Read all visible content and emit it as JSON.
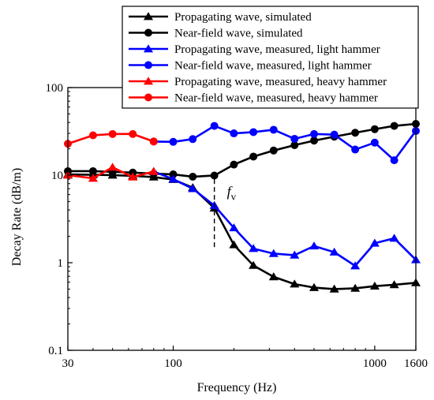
{
  "chart_data": {
    "type": "line",
    "title": "",
    "xlabel": "Frequency (Hz)",
    "ylabel": "Decay Rate (dB/m)",
    "xscale": "log",
    "yscale": "log",
    "xlim": [
      30,
      1600
    ],
    "ylim": [
      0.1,
      100
    ],
    "x_ticks": [
      30,
      100,
      1000,
      1600
    ],
    "x_tick_labels": [
      "30",
      "100",
      "1000",
      "1600"
    ],
    "y_ticks": [
      0.1,
      1,
      10,
      100
    ],
    "y_tick_labels": [
      "0.1",
      "1",
      "10",
      "100"
    ],
    "grid": false,
    "legend_position": "top-right",
    "annotation": {
      "text": "f",
      "subscript": "v",
      "x": 160,
      "y_range": [
        1.5,
        9
      ]
    },
    "series": [
      {
        "name": "Propagating wave, simulated",
        "color": "#000000",
        "marker": "triangle",
        "x": [
          30,
          40,
          50,
          63,
          80,
          100,
          125,
          160,
          200,
          250,
          315,
          400,
          500,
          630,
          800,
          1000,
          1250,
          1600
        ],
        "y": [
          10.2,
          10.1,
          10.0,
          9.8,
          9.5,
          8.9,
          7.2,
          4.2,
          1.6,
          0.93,
          0.69,
          0.57,
          0.52,
          0.5,
          0.51,
          0.54,
          0.56,
          0.59
        ]
      },
      {
        "name": "Near-field wave, simulated",
        "color": "#000000",
        "marker": "circle",
        "x": [
          30,
          40,
          50,
          63,
          80,
          100,
          125,
          160,
          200,
          250,
          315,
          400,
          500,
          630,
          800,
          1000,
          1250,
          1600
        ],
        "y": [
          11.1,
          11.1,
          10.9,
          10.7,
          10.4,
          10.2,
          9.6,
          9.9,
          13.2,
          16.3,
          19.1,
          22.0,
          24.8,
          27.5,
          30.5,
          33.5,
          36.5,
          38.5
        ]
      },
      {
        "name": "Propagating wave, measured, light hammer",
        "color": "#0000ff",
        "marker": "triangle",
        "x": [
          80,
          100,
          125,
          160,
          200,
          250,
          315,
          400,
          500,
          630,
          800,
          1000,
          1250,
          1600
        ],
        "y": [
          11.0,
          9.0,
          7.0,
          4.5,
          2.5,
          1.45,
          1.27,
          1.22,
          1.55,
          1.32,
          0.92,
          1.67,
          1.9,
          1.08
        ]
      },
      {
        "name": "Near-field wave, measured, light hammer",
        "color": "#0000ff",
        "marker": "circle",
        "x": [
          80,
          100,
          125,
          160,
          200,
          250,
          315,
          400,
          500,
          630,
          800,
          1000,
          1250,
          1600
        ],
        "y": [
          24.2,
          24.0,
          25.8,
          36.5,
          30.0,
          31.0,
          33.0,
          26.0,
          29.5,
          29.0,
          19.6,
          23.5,
          14.8,
          32.0
        ]
      },
      {
        "name": "Propagating wave, measured, heavy hammer",
        "color": "#ff0000",
        "marker": "triangle",
        "x": [
          30,
          40,
          50,
          63,
          80
        ],
        "y": [
          10.0,
          9.2,
          12.3,
          9.5,
          11.0
        ]
      },
      {
        "name": "Near-field wave, measured, heavy hammer",
        "color": "#ff0000",
        "marker": "circle",
        "x": [
          30,
          40,
          50,
          63,
          80
        ],
        "y": [
          22.8,
          28.5,
          29.5,
          29.5,
          24.2
        ]
      }
    ]
  }
}
